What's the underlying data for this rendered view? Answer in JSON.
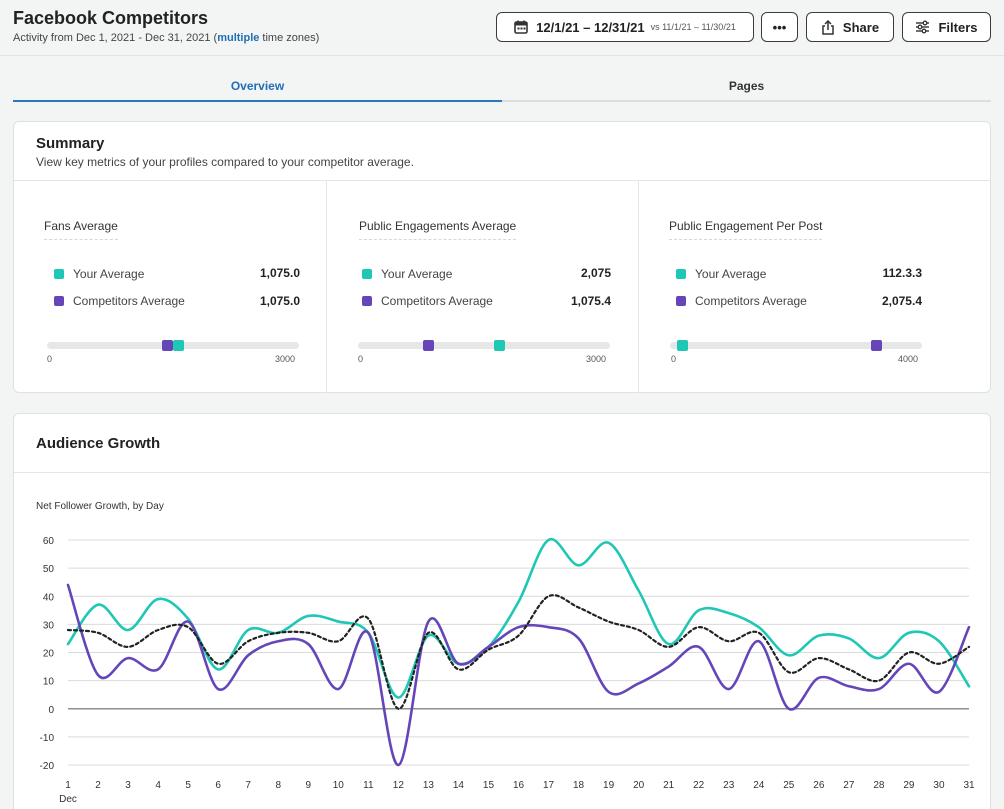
{
  "header": {
    "title": "Facebook Competitors",
    "subtitle_prefix": "Activity from Dec 1, 2021 - Dec 31, 2021 (",
    "subtitle_link": "multiple",
    "subtitle_suffix": " time zones)",
    "date_range": "12/1/21 – 12/31/21",
    "compare_range": "vs 11/1/21 – 11/30/21",
    "more_label": "•••",
    "share_label": "Share",
    "filters_label": "Filters"
  },
  "tabs": [
    {
      "label": "Overview",
      "active": true
    },
    {
      "label": "Pages",
      "active": false
    }
  ],
  "summary": {
    "title": "Summary",
    "description": "View key metrics of your profiles compared to your competitor average.",
    "metrics": [
      {
        "title": "Fans Average",
        "your_label": "Your Average",
        "your_value": "1,075.0",
        "comp_label": "Competitors Average",
        "comp_value": "1,075.0",
        "min": "0",
        "max": "3000",
        "your_pos": 0.52,
        "comp_pos": 0.48
      },
      {
        "title": "Public Engagements Average",
        "your_label": "Your Average",
        "your_value": "2,075",
        "comp_label": "Competitors Average",
        "comp_value": "1,075.4",
        "min": "0",
        "max": "3000",
        "your_pos": 0.56,
        "comp_pos": 0.28
      },
      {
        "title": "Public Engagement Per Post",
        "your_label": "Your Average",
        "your_value": "112.3.3",
        "comp_label": "Competitors Average",
        "comp_value": "2,075.4",
        "min": "0",
        "max": "4000",
        "your_pos": 0.05,
        "comp_pos": 0.82
      }
    ]
  },
  "colors": {
    "your": "#1fc7b5",
    "competitor": "#6546b8",
    "average": "#222222",
    "accent": "#1f6fb2"
  },
  "audience": {
    "title": "Audience Growth",
    "chart_subtitle": "Net Follower Growth, by Day"
  },
  "chart_data": {
    "type": "line",
    "x": [
      1,
      2,
      3,
      4,
      5,
      6,
      7,
      8,
      9,
      10,
      11,
      12,
      13,
      14,
      15,
      16,
      17,
      18,
      19,
      20,
      21,
      22,
      23,
      24,
      25,
      26,
      27,
      28,
      29,
      30,
      31
    ],
    "x_tick_labels": [
      "1",
      "2",
      "3",
      "4",
      "5",
      "6",
      "7",
      "8",
      "9",
      "10",
      "11",
      "12",
      "13",
      "14",
      "15",
      "16",
      "17",
      "18",
      "19",
      "20",
      "21",
      "22",
      "23",
      "24",
      "25",
      "26",
      "27",
      "28",
      "29",
      "30",
      "31"
    ],
    "x_sublabel": "Dec",
    "ylim": [
      -20,
      60
    ],
    "y_ticks": [
      60,
      50,
      40,
      30,
      20,
      10,
      0,
      -10,
      -20
    ],
    "ylabel": "Net Follower Growth, by Day",
    "grid": true,
    "series": [
      {
        "values": [
          23,
          37,
          28,
          39,
          32,
          14,
          28,
          27,
          33,
          31,
          27,
          4,
          26,
          16,
          22,
          38,
          60,
          51,
          59,
          42,
          23,
          35,
          34,
          29,
          19,
          26,
          25,
          18,
          27,
          24,
          8
        ]
      },
      {
        "values": [
          44,
          12,
          18,
          14,
          31,
          7,
          19,
          24,
          23,
          7,
          27,
          -20,
          31,
          16,
          22,
          29,
          29,
          25,
          6,
          9,
          15,
          22,
          7,
          24,
          0,
          11,
          8,
          7,
          16,
          6,
          29
        ]
      },
      {
        "values": [
          28,
          27,
          22,
          28,
          29,
          16,
          24,
          27,
          27,
          24,
          32,
          0,
          27,
          14,
          21,
          26,
          40,
          36,
          31,
          28,
          22,
          29,
          24,
          27,
          13,
          18,
          14,
          10,
          20,
          16,
          22
        ]
      }
    ]
  }
}
